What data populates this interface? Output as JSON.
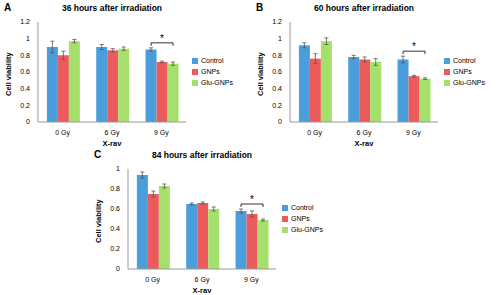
{
  "chart_data": [
    {
      "type": "bar",
      "panel_label": "A",
      "title": "36 hours after irradiation",
      "x_label": "X-ray",
      "y_label": "Cell viability",
      "categories": [
        "0 Gy",
        "6 Gy",
        "9 Gy"
      ],
      "series": [
        {
          "name": "Control",
          "color": "#4a9edb",
          "values": [
            0.9,
            0.9,
            0.87
          ],
          "errors": [
            0.07,
            0.03,
            0.02
          ]
        },
        {
          "name": "GNPs",
          "color": "#ec5b5b",
          "values": [
            0.8,
            0.86,
            0.72
          ],
          "errors": [
            0.05,
            0.02,
            0.01
          ]
        },
        {
          "name": "Glu-GNPs",
          "color": "#a6e06c",
          "values": [
            0.97,
            0.88,
            0.7
          ],
          "errors": [
            0.02,
            0.02,
            0.02
          ]
        }
      ],
      "ylim": [
        0,
        1.2
      ],
      "yticks": [
        0,
        0.2,
        0.4,
        0.6,
        0.8,
        1,
        1.2
      ],
      "annotations": [
        {
          "text": "*",
          "category": "9 Gy"
        }
      ]
    },
    {
      "type": "bar",
      "panel_label": "B",
      "title": "60 hours after irradiation",
      "x_label": "X-ray",
      "y_label": "Cell viability",
      "categories": [
        "0 Gy",
        "6 Gy",
        "9 Gy"
      ],
      "series": [
        {
          "name": "Control",
          "color": "#4a9edb",
          "values": [
            0.92,
            0.78,
            0.75
          ],
          "errors": [
            0.03,
            0.02,
            0.04
          ]
        },
        {
          "name": "GNPs",
          "color": "#ec5b5b",
          "values": [
            0.76,
            0.75,
            0.55
          ],
          "errors": [
            0.06,
            0.03,
            0.01
          ]
        },
        {
          "name": "Glu-GNPs",
          "color": "#a6e06c",
          "values": [
            0.97,
            0.72,
            0.52
          ],
          "errors": [
            0.04,
            0.04,
            0.01
          ]
        }
      ],
      "ylim": [
        0,
        1.2
      ],
      "yticks": [
        0,
        0.2,
        0.4,
        0.6,
        0.8,
        1,
        1.2
      ],
      "annotations": [
        {
          "text": "*",
          "category": "9 Gy"
        }
      ]
    },
    {
      "type": "bar",
      "panel_label": "C",
      "title": "84 hours after irradiation",
      "x_label": "X-ray",
      "y_label": "Cell viability",
      "categories": [
        "0 Gy",
        "6 Gy",
        "9 Gy"
      ],
      "series": [
        {
          "name": "Control",
          "color": "#4a9edb",
          "values": [
            0.94,
            0.65,
            0.58
          ],
          "errors": [
            0.03,
            0.01,
            0.02
          ]
        },
        {
          "name": "GNPs",
          "color": "#ec5b5b",
          "values": [
            0.75,
            0.66,
            0.55
          ],
          "errors": [
            0.03,
            0.01,
            0.03
          ]
        },
        {
          "name": "Glu-GNPs",
          "color": "#a6e06c",
          "values": [
            0.83,
            0.6,
            0.49
          ],
          "errors": [
            0.02,
            0.02,
            0.01
          ]
        }
      ],
      "ylim": [
        0,
        1
      ],
      "yticks": [
        0,
        0.2,
        0.4,
        0.6,
        0.8,
        1
      ],
      "annotations": [
        {
          "text": "*",
          "category": "9 Gy"
        }
      ]
    }
  ]
}
